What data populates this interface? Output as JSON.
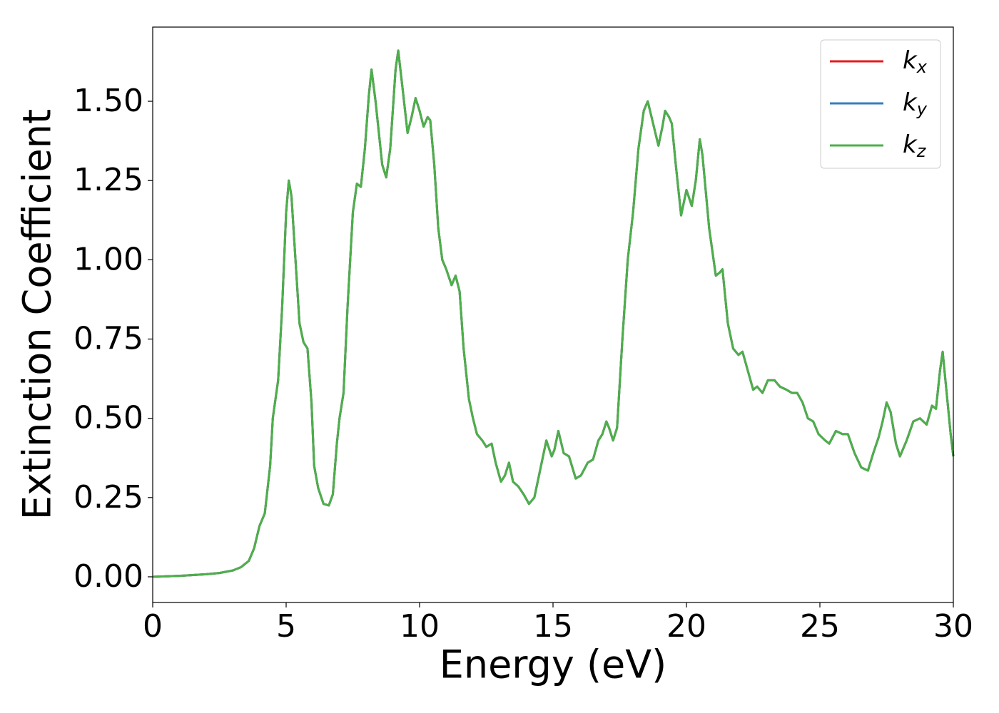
{
  "chart_data": {
    "type": "line",
    "xlabel": "Energy (eV)",
    "ylabel": "Extinction Coefficient",
    "xlim": [
      0,
      30
    ],
    "xticks": [
      0,
      5,
      10,
      15,
      20,
      25,
      30
    ],
    "ylim": [
      -0.081,
      1.734
    ],
    "yticks": [
      {
        "value": 0,
        "label": "0.00"
      },
      {
        "value": 0.25,
        "label": "0.25"
      },
      {
        "value": 0.5,
        "label": "0.50"
      },
      {
        "value": 0.75,
        "label": "0.75"
      },
      {
        "value": 1,
        "label": "1.00"
      },
      {
        "value": 1.25,
        "label": "1.25"
      },
      {
        "value": 1.5,
        "label": "1.50"
      }
    ],
    "grid": false,
    "legend": "upper right",
    "x": [
      0,
      1,
      2,
      2.5,
      3,
      3.3,
      3.6,
      3.8,
      4.0,
      4.2,
      4.4,
      4.5,
      4.7,
      4.85,
      5.0,
      5.1,
      5.2,
      5.35,
      5.5,
      5.65,
      5.8,
      5.95,
      6.05,
      6.2,
      6.4,
      6.6,
      6.75,
      6.9,
      7.0,
      7.15,
      7.3,
      7.5,
      7.65,
      7.8,
      7.95,
      8.1,
      8.2,
      8.35,
      8.6,
      8.75,
      8.9,
      9.1,
      9.2,
      9.35,
      9.55,
      9.7,
      9.85,
      10.0,
      10.15,
      10.3,
      10.4,
      10.55,
      10.7,
      10.85,
      11.0,
      11.2,
      11.35,
      11.5,
      11.65,
      11.85,
      12.0,
      12.15,
      12.35,
      12.5,
      12.7,
      12.85,
      13.05,
      13.2,
      13.35,
      13.5,
      13.7,
      13.9,
      14.1,
      14.3,
      14.5,
      14.75,
      14.95,
      15.05,
      15.2,
      15.4,
      15.6,
      15.85,
      16.05,
      16.3,
      16.5,
      16.7,
      16.85,
      17.0,
      17.1,
      17.25,
      17.4,
      17.6,
      17.8,
      18.0,
      18.2,
      18.4,
      18.55,
      18.75,
      18.95,
      19.1,
      19.2,
      19.35,
      19.45,
      19.6,
      19.8,
      20.0,
      20.2,
      20.35,
      20.5,
      20.6,
      20.85,
      21.1,
      21.25,
      21.35,
      21.55,
      21.75,
      21.95,
      22.1,
      22.3,
      22.5,
      22.65,
      22.85,
      23.05,
      23.3,
      23.5,
      23.75,
      23.95,
      24.15,
      24.35,
      24.55,
      24.75,
      24.95,
      25.2,
      25.35,
      25.6,
      25.85,
      26.05,
      26.3,
      26.55,
      26.8,
      27.0,
      27.2,
      27.35,
      27.5,
      27.65,
      27.85,
      28.0,
      28.25,
      28.5,
      28.75,
      29.0,
      29.2,
      29.35,
      29.5,
      29.6,
      29.75,
      29.9,
      30.0
    ],
    "series": [
      {
        "name": "kx",
        "color": "#e41a1c",
        "values": [
          0.0,
          0.003,
          0.008,
          0.012,
          0.02,
          0.03,
          0.05,
          0.09,
          0.16,
          0.2,
          0.35,
          0.5,
          0.62,
          0.85,
          1.15,
          1.25,
          1.2,
          1.0,
          0.8,
          0.74,
          0.72,
          0.55,
          0.35,
          0.28,
          0.23,
          0.225,
          0.26,
          0.42,
          0.5,
          0.58,
          0.85,
          1.15,
          1.24,
          1.23,
          1.35,
          1.52,
          1.6,
          1.5,
          1.3,
          1.26,
          1.35,
          1.6,
          1.66,
          1.55,
          1.4,
          1.45,
          1.51,
          1.47,
          1.42,
          1.45,
          1.44,
          1.3,
          1.1,
          1.0,
          0.97,
          0.92,
          0.95,
          0.9,
          0.72,
          0.56,
          0.5,
          0.45,
          0.43,
          0.41,
          0.42,
          0.36,
          0.3,
          0.32,
          0.36,
          0.3,
          0.285,
          0.26,
          0.23,
          0.25,
          0.33,
          0.43,
          0.38,
          0.4,
          0.46,
          0.39,
          0.38,
          0.31,
          0.32,
          0.36,
          0.37,
          0.43,
          0.45,
          0.49,
          0.47,
          0.43,
          0.47,
          0.75,
          1.0,
          1.15,
          1.35,
          1.47,
          1.5,
          1.43,
          1.36,
          1.42,
          1.47,
          1.45,
          1.43,
          1.3,
          1.14,
          1.22,
          1.17,
          1.25,
          1.38,
          1.33,
          1.1,
          0.95,
          0.96,
          0.97,
          0.8,
          0.72,
          0.7,
          0.71,
          0.65,
          0.59,
          0.6,
          0.58,
          0.62,
          0.62,
          0.6,
          0.59,
          0.58,
          0.58,
          0.55,
          0.5,
          0.49,
          0.45,
          0.43,
          0.42,
          0.46,
          0.45,
          0.45,
          0.39,
          0.345,
          0.335,
          0.39,
          0.44,
          0.49,
          0.55,
          0.52,
          0.42,
          0.38,
          0.43,
          0.49,
          0.5,
          0.48,
          0.54,
          0.53,
          0.65,
          0.71,
          0.58,
          0.45,
          0.38
        ]
      },
      {
        "name": "ky",
        "color": "#377eb8",
        "values": [
          0.0,
          0.003,
          0.008,
          0.012,
          0.02,
          0.03,
          0.05,
          0.09,
          0.16,
          0.2,
          0.35,
          0.5,
          0.62,
          0.85,
          1.15,
          1.25,
          1.2,
          1.0,
          0.8,
          0.74,
          0.72,
          0.55,
          0.35,
          0.28,
          0.23,
          0.225,
          0.26,
          0.42,
          0.5,
          0.58,
          0.85,
          1.15,
          1.24,
          1.23,
          1.35,
          1.52,
          1.6,
          1.5,
          1.3,
          1.26,
          1.35,
          1.6,
          1.66,
          1.55,
          1.4,
          1.45,
          1.51,
          1.47,
          1.42,
          1.45,
          1.44,
          1.3,
          1.1,
          1.0,
          0.97,
          0.92,
          0.95,
          0.9,
          0.72,
          0.56,
          0.5,
          0.45,
          0.43,
          0.41,
          0.42,
          0.36,
          0.3,
          0.32,
          0.36,
          0.3,
          0.285,
          0.26,
          0.23,
          0.25,
          0.33,
          0.43,
          0.38,
          0.4,
          0.46,
          0.39,
          0.38,
          0.31,
          0.32,
          0.36,
          0.37,
          0.43,
          0.45,
          0.49,
          0.47,
          0.43,
          0.47,
          0.75,
          1.0,
          1.15,
          1.35,
          1.47,
          1.5,
          1.43,
          1.36,
          1.42,
          1.47,
          1.45,
          1.43,
          1.3,
          1.14,
          1.22,
          1.17,
          1.25,
          1.38,
          1.33,
          1.1,
          0.95,
          0.96,
          0.97,
          0.8,
          0.72,
          0.7,
          0.71,
          0.65,
          0.59,
          0.6,
          0.58,
          0.62,
          0.62,
          0.6,
          0.59,
          0.58,
          0.58,
          0.55,
          0.5,
          0.49,
          0.45,
          0.43,
          0.42,
          0.46,
          0.45,
          0.45,
          0.39,
          0.345,
          0.335,
          0.39,
          0.44,
          0.49,
          0.55,
          0.52,
          0.42,
          0.38,
          0.43,
          0.49,
          0.5,
          0.48,
          0.54,
          0.53,
          0.65,
          0.71,
          0.58,
          0.45,
          0.38
        ]
      },
      {
        "name": "kz",
        "color": "#4daf4a",
        "values": [
          0.0,
          0.003,
          0.008,
          0.012,
          0.02,
          0.03,
          0.05,
          0.09,
          0.16,
          0.2,
          0.35,
          0.5,
          0.62,
          0.85,
          1.15,
          1.25,
          1.2,
          1.0,
          0.8,
          0.74,
          0.72,
          0.55,
          0.35,
          0.28,
          0.23,
          0.225,
          0.26,
          0.42,
          0.5,
          0.58,
          0.85,
          1.15,
          1.24,
          1.23,
          1.35,
          1.52,
          1.6,
          1.5,
          1.3,
          1.26,
          1.35,
          1.6,
          1.66,
          1.55,
          1.4,
          1.45,
          1.51,
          1.47,
          1.42,
          1.45,
          1.44,
          1.3,
          1.1,
          1.0,
          0.97,
          0.92,
          0.95,
          0.9,
          0.72,
          0.56,
          0.5,
          0.45,
          0.43,
          0.41,
          0.42,
          0.36,
          0.3,
          0.32,
          0.36,
          0.3,
          0.285,
          0.26,
          0.23,
          0.25,
          0.33,
          0.43,
          0.38,
          0.4,
          0.46,
          0.39,
          0.38,
          0.31,
          0.32,
          0.36,
          0.37,
          0.43,
          0.45,
          0.49,
          0.47,
          0.43,
          0.47,
          0.75,
          1.0,
          1.15,
          1.35,
          1.47,
          1.5,
          1.43,
          1.36,
          1.42,
          1.47,
          1.45,
          1.43,
          1.3,
          1.14,
          1.22,
          1.17,
          1.25,
          1.38,
          1.33,
          1.1,
          0.95,
          0.96,
          0.97,
          0.8,
          0.72,
          0.7,
          0.71,
          0.65,
          0.59,
          0.6,
          0.58,
          0.62,
          0.62,
          0.6,
          0.59,
          0.58,
          0.58,
          0.55,
          0.5,
          0.49,
          0.45,
          0.43,
          0.42,
          0.46,
          0.45,
          0.45,
          0.39,
          0.345,
          0.335,
          0.39,
          0.44,
          0.49,
          0.55,
          0.52,
          0.42,
          0.38,
          0.43,
          0.49,
          0.5,
          0.48,
          0.54,
          0.53,
          0.65,
          0.71,
          0.58,
          0.45,
          0.38
        ]
      }
    ]
  }
}
